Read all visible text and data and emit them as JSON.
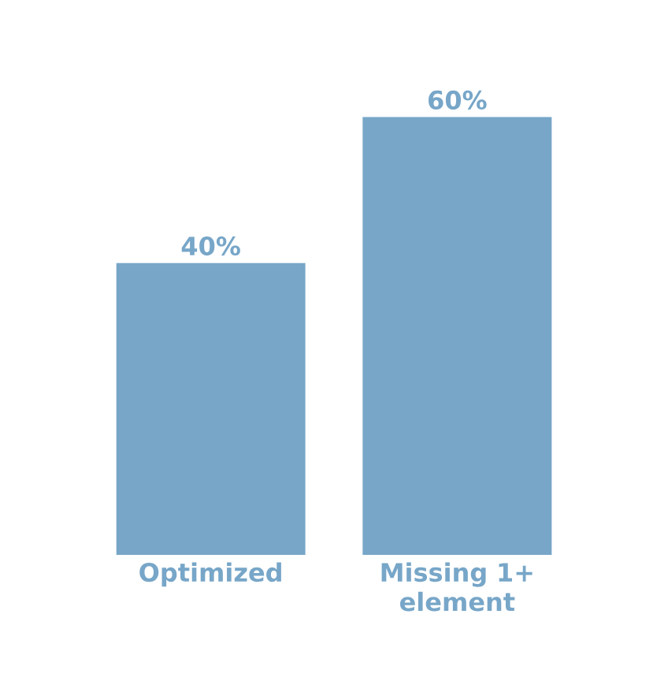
{
  "chart_data": {
    "type": "bar",
    "categories": [
      "Optimized",
      "Missing 1+ element"
    ],
    "values": [
      40,
      60
    ],
    "value_labels": [
      "40%",
      "60%"
    ],
    "color": "#77a6c8"
  }
}
